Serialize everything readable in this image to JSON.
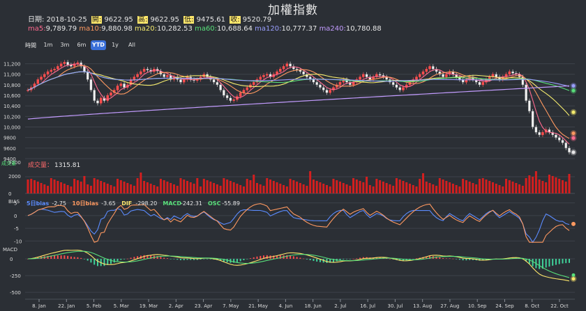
{
  "title": "加權指數",
  "info": {
    "date_label": "日期:",
    "date": "2018-10-25",
    "open_label": "開:",
    "open": "9622.95",
    "high_label": "高:",
    "high": "9622.95",
    "low_label": "低:",
    "low": "9475.61",
    "close_label": "收:",
    "close": "9520.79"
  },
  "ma": [
    {
      "label": "ma5:",
      "value": "9,789.79",
      "color": "#ff6a8f"
    },
    {
      "label": "ma10:",
      "value": "9,880.98",
      "color": "#ff9960"
    },
    {
      "label": "ma20:",
      "value": "10,282.53",
      "color": "#f5ec6e"
    },
    {
      "label": "ma60:",
      "value": "10,688.64",
      "color": "#59e07b"
    },
    {
      "label": "ma120:",
      "value": "10,777.37",
      "color": "#9a9fff"
    },
    {
      "label": "ma240:",
      "value": "10,780.88",
      "color": "#c39cff"
    }
  ],
  "range_selector": {
    "label": "時間",
    "buttons": [
      "1m",
      "3m",
      "6m",
      "YTD",
      "1y",
      "All"
    ],
    "selected": "YTD"
  },
  "volume_panel": {
    "title": "成交量",
    "value": "1315.81",
    "ylabel": "成交量",
    "yticks": [
      "4000",
      "2000",
      "0"
    ]
  },
  "bias_panel": {
    "ylabel": "BIAS",
    "legend": [
      {
        "label": "5日bias",
        "value": "-2.75",
        "color": "#5b8cff"
      },
      {
        "label": "10日bias",
        "value": "-3.65",
        "color": "#ff9960"
      },
      {
        "label": "DIF",
        "value": "-298.20",
        "color": "#ffe86b"
      },
      {
        "label": "MACD",
        "value": "-242.31",
        "color": "#59e07b"
      },
      {
        "label": "OSC",
        "value": "-55.89",
        "color": "#59e07b"
      }
    ],
    "yticks": [
      "5",
      "0",
      "-5",
      "-10"
    ]
  },
  "macd_panel": {
    "ylabel": "MACD",
    "yticks": [
      "0",
      "-250",
      "-500"
    ]
  },
  "price_axis": {
    "ticks": [
      "11,200",
      "11,000",
      "10,800",
      "10,600",
      "10,400",
      "10,200",
      "10,000",
      "9800",
      "9600",
      "9400"
    ],
    "top_label": "9200"
  },
  "x_axis": {
    "labels": [
      "8. Jan",
      "22. Jan",
      "5. Feb",
      "5. Mar",
      "19. Mar",
      "2. Apr",
      "23. Apr",
      "7. May",
      "21. May",
      "4. Jun",
      "18. Jun",
      "2. Jul",
      "16. Jul",
      "30. Jul",
      "13. Aug",
      "27. Aug",
      "10. Sep",
      "24. Sep",
      "8. Oct",
      "22. Oct"
    ]
  },
  "chart_data": {
    "type": "candlestick",
    "title": "加權指數",
    "x_start": "2018-01-02",
    "x_end": "2018-10-25",
    "ylim": [
      9400,
      11300
    ],
    "price_closes": [
      10700,
      10750,
      10820,
      10900,
      10950,
      11000,
      11050,
      11080,
      11100,
      11150,
      11200,
      11230,
      11180,
      11150,
      11200,
      11220,
      11150,
      11050,
      10900,
      10700,
      10500,
      10450,
      10550,
      10500,
      10600,
      10650,
      10700,
      10780,
      10820,
      10750,
      10800,
      10900,
      10950,
      11000,
      11050,
      11100,
      11080,
      11050,
      11100,
      11060,
      11000,
      10950,
      10980,
      10900,
      10950,
      10900,
      10850,
      10900,
      10950,
      10900,
      10880,
      10900,
      10950,
      11000,
      10950,
      10900,
      10850,
      10800,
      10700,
      10600,
      10550,
      10500,
      10520,
      10580,
      10650,
      10700,
      10750,
      10800,
      10850,
      10900,
      10950,
      10980,
      11000,
      10950,
      11000,
      11050,
      11100,
      11150,
      11200,
      11150,
      11100,
      11080,
      11050,
      11000,
      10950,
      10900,
      10850,
      10800,
      10750,
      10700,
      10650,
      10700,
      10750,
      10800,
      10850,
      10900,
      10850,
      10800,
      10850,
      10900,
      10950,
      11000,
      10950,
      10900,
      10950,
      11000,
      10980,
      10950,
      10900,
      10850,
      10800,
      10750,
      10700,
      10750,
      10800,
      10850,
      10900,
      10950,
      11000,
      11050,
      11100,
      11150,
      11100,
      11050,
      11000,
      10950,
      11000,
      11050,
      11000,
      10950,
      10900,
      10850,
      10900,
      10950,
      10900,
      10850,
      10800,
      10850,
      10900,
      10950,
      11000,
      10950,
      10900,
      10950,
      11000,
      11050,
      11020,
      11000,
      10950,
      10800,
      10500,
      10300,
      10000,
      9900,
      9850,
      9900,
      9950,
      9900,
      9850,
      9800,
      9750,
      9700,
      9600,
      9520
    ]
  }
}
